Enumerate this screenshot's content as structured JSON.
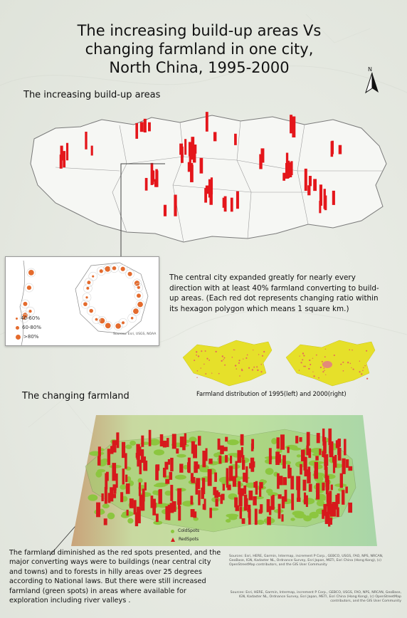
{
  "title": {
    "line1": "The increasing build-up areas Vs",
    "line2": "changing farmland in one city,",
    "line3": "North China, 1995-2000"
  },
  "north_label": "N",
  "section_buildup": "The increasing build-up areas",
  "section_farmland": "The changing farmland",
  "inset": {
    "legend": [
      {
        "label": "40-60%",
        "size": 3
      },
      {
        "label": "60-80%",
        "size": 5
      },
      {
        "label": ">80%",
        "size": 7
      }
    ],
    "source": "Sources: Esri, USGS, NOAA"
  },
  "description_buildup": "The central city expanded greatly for nearly every direction with at least 40% farmland converting to build-up areas. (Each red dot represents changing ratio within its hexagon polygon which means 1 square km.)",
  "farmland_caption": "Farmland distribution of 1995(left) and 2000(right)",
  "legend_3d": [
    {
      "label": "ColdSpots",
      "color": "#8cc63f"
    },
    {
      "label": "RedSpots",
      "color": "#d7191c"
    }
  ],
  "description_farmland": "The farmland diminished as the red spots presented, and the major converting ways were to buildings (near central city and towns) and to forests in hilly areas over 25 degrees according to National laws. But there were still increased farmland (green spots) in areas where available for exploration including river valleys .",
  "credits_top": "Sources: Esri, HERE, Garmin, Intermap, increment P Corp., GEBCO, USGS, FAO, NPS, NRCAN, GeoBase, IGN, Kadaster NL, Ordnance Survey, Esri Japan, METI, Esri China (Hong Kong), (c) OpenStreetMap contributors, and the GIS User Community",
  "credits_bottom": "Sources: Esri, HERE, Garmin, Intermap, increment P Corp., GEBCO, USGS, FAO, NPS, NRCAN, GeoBase, IGN, Kadaster NL, Ordnance Survey, Esri Japan, METI, Esri China (Hong Kong), (c) OpenStreetMap contributors, and the GIS User Community",
  "colors": {
    "buildup_red": "#e4161b",
    "farmland_yellow": "#e6e02a",
    "cold_green": "#8cc63f",
    "inset_orange": "#e46b2d"
  }
}
